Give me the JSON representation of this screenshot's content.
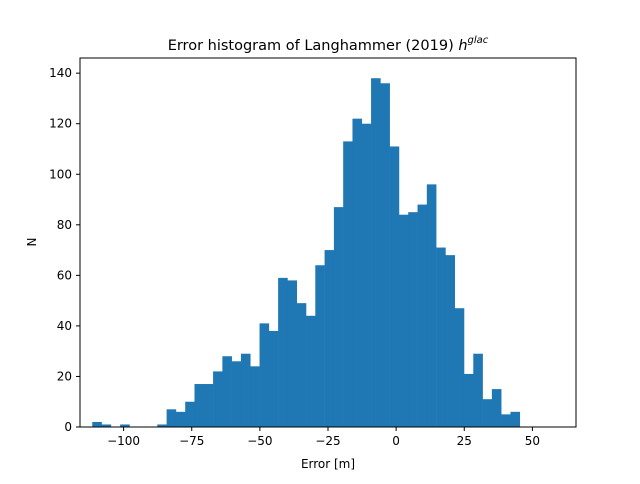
{
  "chart_data": {
    "type": "bar",
    "subtype": "histogram",
    "title_main": "Error histogram of Langhammer (2019) ",
    "title_math_base": "h",
    "title_math_superscript": "glac",
    "xlabel": "Error [m]",
    "ylabel": "N",
    "xlim": [
      -116,
      66
    ],
    "ylim": [
      0,
      146
    ],
    "bin_start": -111.5,
    "bin_width": 3.41,
    "counts": [
      2,
      1,
      0,
      1,
      0,
      0,
      0,
      1,
      7,
      6,
      10,
      17,
      17,
      22,
      28,
      26,
      29,
      24,
      41,
      38,
      59,
      58,
      49,
      44,
      64,
      70,
      87,
      113,
      122,
      120,
      138,
      136,
      111,
      84,
      85,
      88,
      96,
      71,
      68,
      47,
      21,
      29,
      11,
      15,
      5,
      6
    ],
    "xticks": [
      -100,
      -75,
      -50,
      -25,
      0,
      25,
      50
    ],
    "xtick_labels": [
      "−100",
      "−75",
      "−50",
      "−25",
      "0",
      "25",
      "50"
    ],
    "yticks": [
      0,
      20,
      40,
      60,
      80,
      100,
      120,
      140
    ],
    "ytick_labels": [
      "0",
      "20",
      "40",
      "60",
      "80",
      "100",
      "120",
      "140"
    ],
    "bar_color": "#1f77b4",
    "grid": false,
    "legend": "none"
  }
}
